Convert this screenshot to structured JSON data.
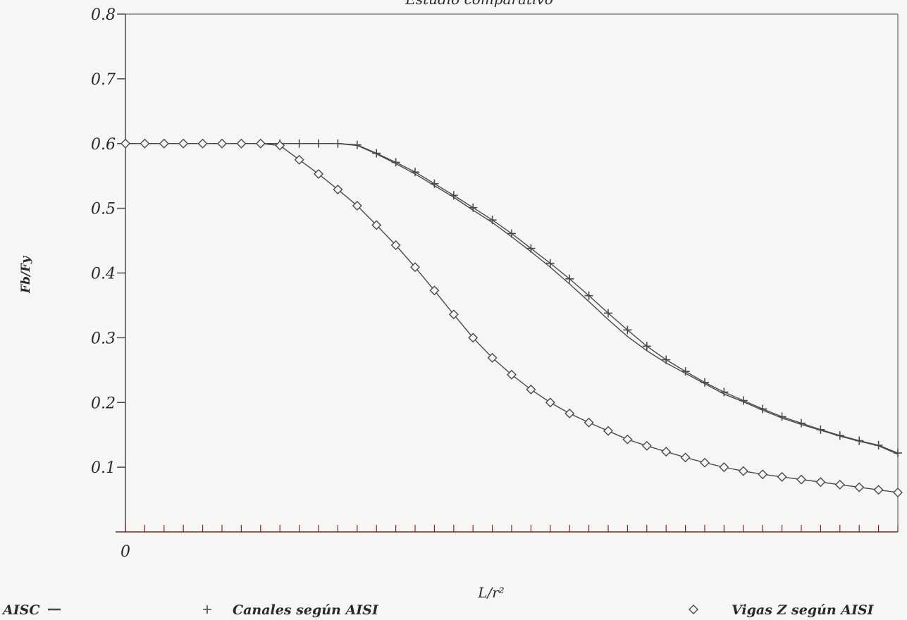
{
  "chart_data": {
    "type": "line",
    "title": "Estudio comparativo",
    "xlabel": "L/r²",
    "ylabel": "Fb/Fy",
    "ylim": [
      0,
      0.8
    ],
    "xlim": [
      0,
      40
    ],
    "x_tick_count": 40,
    "y_ticks": [
      {
        "value": 0.1,
        "label": "0.1"
      },
      {
        "value": 0.2,
        "label": "0.2"
      },
      {
        "value": 0.3,
        "label": "0.3"
      },
      {
        "value": 0.4,
        "label": "0.4"
      },
      {
        "value": 0.5,
        "label": "0.5"
      },
      {
        "value": 0.6,
        "label": "0.6"
      },
      {
        "value": 0.7,
        "label": "0.7"
      },
      {
        "value": 0.8,
        "label": "0.8"
      }
    ],
    "x_ticks": [
      {
        "value": 0,
        "label": "0"
      }
    ],
    "legend_position": "bottom",
    "colors": {
      "line": "#4a4a4a",
      "axis": "#7a2a2a",
      "text": "#2a2a2a"
    },
    "series": [
      {
        "name": "AISC",
        "marker": "line",
        "x": [
          0,
          1,
          2,
          3,
          4,
          5,
          6,
          7,
          8,
          9,
          10,
          11,
          12,
          13,
          14,
          15,
          16,
          17,
          18,
          19,
          20,
          21,
          22,
          23,
          24,
          25,
          26,
          27,
          28,
          29,
          30,
          31,
          32,
          33,
          34,
          35,
          36,
          37,
          38,
          39,
          40
        ],
        "values": [
          0.6,
          0.6,
          0.6,
          0.6,
          0.6,
          0.6,
          0.6,
          0.6,
          0.6,
          0.6,
          0.6,
          0.6,
          0.597,
          0.584,
          0.569,
          0.553,
          0.535,
          0.517,
          0.497,
          0.478,
          0.456,
          0.433,
          0.409,
          0.383,
          0.356,
          0.328,
          0.302,
          0.28,
          0.261,
          0.245,
          0.229,
          0.213,
          0.201,
          0.188,
          0.176,
          0.166,
          0.157,
          0.148,
          0.14,
          0.133,
          0.12
        ]
      },
      {
        "name": "Canales según AISI",
        "marker": "+",
        "x": [
          0,
          1,
          2,
          3,
          4,
          5,
          6,
          7,
          8,
          9,
          10,
          11,
          12,
          13,
          14,
          15,
          16,
          17,
          18,
          19,
          20,
          21,
          22,
          23,
          24,
          25,
          26,
          27,
          28,
          29,
          30,
          31,
          32,
          33,
          34,
          35,
          36,
          37,
          38,
          39,
          40
        ],
        "values": [
          0.6,
          0.6,
          0.6,
          0.6,
          0.6,
          0.6,
          0.6,
          0.6,
          0.6,
          0.6,
          0.6,
          0.6,
          0.598,
          0.585,
          0.571,
          0.556,
          0.538,
          0.52,
          0.501,
          0.482,
          0.461,
          0.438,
          0.415,
          0.391,
          0.365,
          0.338,
          0.312,
          0.287,
          0.266,
          0.248,
          0.231,
          0.216,
          0.203,
          0.19,
          0.178,
          0.168,
          0.158,
          0.149,
          0.141,
          0.134,
          0.122
        ]
      },
      {
        "name": "Vigas Z según AISI",
        "marker": "diamond",
        "x": [
          0,
          1,
          2,
          3,
          4,
          5,
          6,
          7,
          8,
          9,
          10,
          11,
          12,
          13,
          14,
          15,
          16,
          17,
          18,
          19,
          20,
          21,
          22,
          23,
          24,
          25,
          26,
          27,
          28,
          29,
          30,
          31,
          32,
          33,
          34,
          35,
          36,
          37,
          38,
          39,
          40
        ],
        "values": [
          0.6,
          0.6,
          0.6,
          0.6,
          0.6,
          0.6,
          0.6,
          0.6,
          0.597,
          0.575,
          0.553,
          0.529,
          0.504,
          0.474,
          0.443,
          0.409,
          0.373,
          0.336,
          0.3,
          0.269,
          0.243,
          0.22,
          0.2,
          0.183,
          0.169,
          0.156,
          0.143,
          0.133,
          0.124,
          0.115,
          0.107,
          0.1,
          0.094,
          0.089,
          0.085,
          0.081,
          0.077,
          0.073,
          0.069,
          0.065,
          0.061
        ]
      }
    ]
  }
}
